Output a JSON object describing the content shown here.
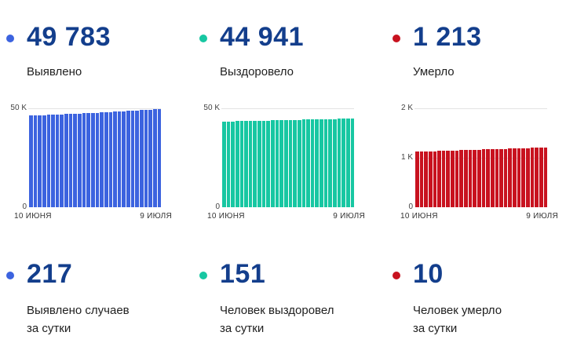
{
  "colors": {
    "confirmed": "#3c63df",
    "recovered": "#17c7a2",
    "deaths": "#c8121f",
    "stat_number": "#133e8c",
    "stat_label": "#212121",
    "axis_tick": "#434343",
    "axis_date": "#333333",
    "gridline": "#e3e3e3",
    "background": "#ffffff"
  },
  "top_stats": [
    {
      "id": "confirmed",
      "value": "49 783",
      "label": "Выявлено",
      "color_key": "confirmed"
    },
    {
      "id": "recovered",
      "value": "44 941",
      "label": "Выздоровело",
      "color_key": "recovered"
    },
    {
      "id": "deaths",
      "value": "1 213",
      "label": "Умерло",
      "color_key": "deaths"
    }
  ],
  "bottom_stats": [
    {
      "id": "confirmed-daily",
      "value": "217",
      "label_line1": "Выявлено случаев",
      "label_line2": "за сутки",
      "color_key": "confirmed"
    },
    {
      "id": "recovered-daily",
      "value": "151",
      "label_line1": "Человек выздоровел",
      "label_line2": "за сутки",
      "color_key": "recovered"
    },
    {
      "id": "deaths-daily",
      "value": "10",
      "label_line1": "Человек умерло",
      "label_line2": "за сутки",
      "color_key": "deaths"
    }
  ],
  "chart_data": [
    {
      "type": "bar",
      "title": "Выявлено",
      "color_key": "confirmed",
      "x_start_label": "10 ИЮНЯ",
      "x_end_label": "9 ИЮЛЯ",
      "ylim": [
        0,
        50000
      ],
      "ymax": 50000,
      "y_ticks": [
        {
          "label": "50 K",
          "pos": 1
        },
        {
          "label": "0",
          "pos": 0
        }
      ],
      "grid": "top-line-only",
      "legend": "none",
      "values": [
        46300,
        46390,
        46480,
        46570,
        46660,
        46755,
        46850,
        46950,
        47050,
        47150,
        47255,
        47360,
        47470,
        47580,
        47695,
        47810,
        47930,
        48050,
        48175,
        48300,
        48430,
        48560,
        48695,
        48830,
        48970,
        49110,
        49255,
        49400,
        49566,
        49783
      ]
    },
    {
      "type": "bar",
      "title": "Выздоровело",
      "color_key": "recovered",
      "x_start_label": "10 ИЮНЯ",
      "x_end_label": "9 ИЮЛЯ",
      "ylim": [
        0,
        50000
      ],
      "ymax": 50000,
      "y_ticks": [
        {
          "label": "50 K",
          "pos": 1
        },
        {
          "label": "0",
          "pos": 0
        }
      ],
      "grid": "top-line-only",
      "legend": "none",
      "values": [
        43300,
        43353,
        43406,
        43459,
        43512,
        43565,
        43618,
        43671,
        43724,
        43777,
        43830,
        43883,
        43936,
        43989,
        44042,
        44095,
        44148,
        44201,
        44254,
        44307,
        44360,
        44413,
        44466,
        44519,
        44572,
        44625,
        44678,
        44735,
        44790,
        44941
      ]
    },
    {
      "type": "bar",
      "title": "Умерло",
      "color_key": "deaths",
      "x_start_label": "10 ИЮНЯ",
      "x_end_label": "9 ИЮЛЯ",
      "ylim": [
        0,
        2000
      ],
      "ymax": 2000,
      "y_ticks": [
        {
          "label": "2 K",
          "pos": 1
        },
        {
          "label": "1 K",
          "pos": 0.5
        },
        {
          "label": "0",
          "pos": 0
        }
      ],
      "grid": "top-line-only",
      "legend": "none",
      "values": [
        1122,
        1125,
        1128,
        1131,
        1134,
        1137,
        1140,
        1143,
        1146,
        1149,
        1152,
        1155,
        1158,
        1161,
        1164,
        1167,
        1170,
        1173,
        1176,
        1179,
        1182,
        1185,
        1188,
        1191,
        1194,
        1197,
        1199,
        1201,
        1203,
        1213
      ]
    }
  ]
}
